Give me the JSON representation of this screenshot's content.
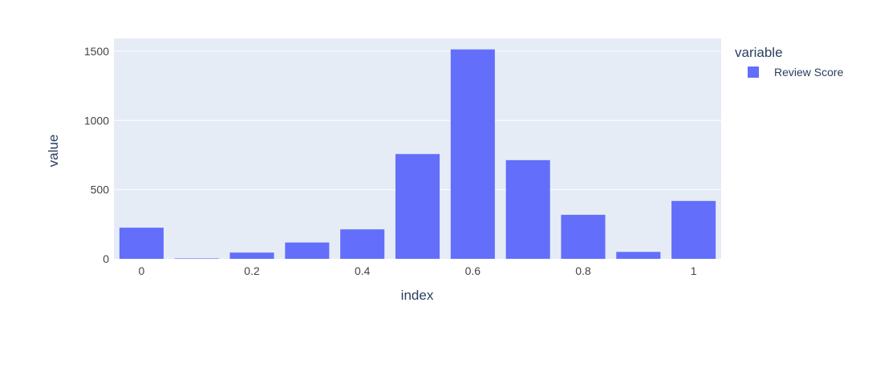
{
  "chart_data": {
    "type": "bar",
    "x": [
      0,
      0.1,
      0.2,
      0.3,
      0.4,
      0.5,
      0.6,
      0.7,
      0.8,
      0.9,
      1
    ],
    "series": [
      {
        "name": "Review Score",
        "color": "#636efa",
        "values": [
          225,
          3,
          45,
          118,
          213,
          757,
          1513,
          713,
          318,
          50,
          418
        ]
      }
    ],
    "xlabel": "index",
    "ylabel": "value",
    "legend_title": "variable",
    "legend_position": "top-right",
    "xlim": [
      -0.05,
      1.05
    ],
    "ylim": [
      0,
      1592
    ],
    "x_ticks": [
      0,
      0.2,
      0.4,
      0.6,
      0.8,
      1
    ],
    "x_tick_labels": [
      "0",
      "0.2",
      "0.4",
      "0.6",
      "0.8",
      "1"
    ],
    "y_ticks": [
      0,
      500,
      1000,
      1500
    ],
    "y_tick_labels": [
      "0",
      "500",
      "1000",
      "1500"
    ],
    "grid": true,
    "plot_background": "#e5ecf6",
    "text_color": "#2a3f5f",
    "tick_text_color": "#444444"
  }
}
